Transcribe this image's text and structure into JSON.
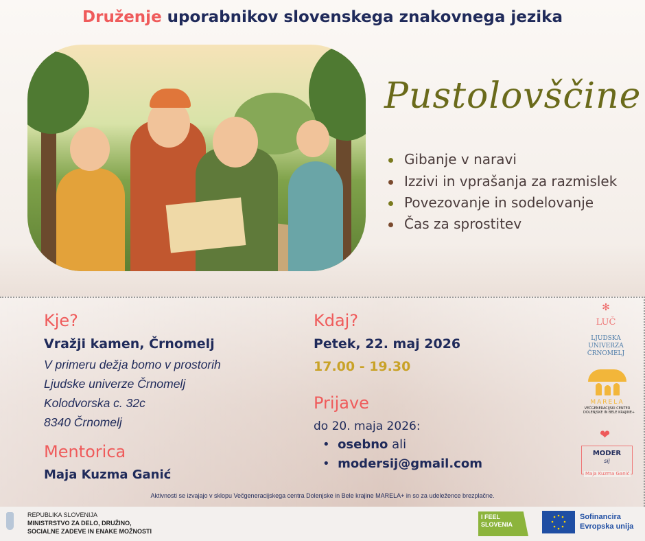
{
  "header": {
    "title_highlight": "Druženje",
    "title_rest": " uporabnikov slovenskega znakovnega jezika"
  },
  "hero": {
    "script_title": "Pustolovščine",
    "bullets": [
      {
        "text": "Gibanje v naravi",
        "color": "#7a7a1e"
      },
      {
        "text": "Izzivi in vprašanja za razmislek",
        "color": "#7a4a2e"
      },
      {
        "text": "Povezovanje in sodelovanje",
        "color": "#7a7a1e"
      },
      {
        "text": "Čas za sprostitev",
        "color": "#7a4a2e"
      }
    ]
  },
  "where": {
    "heading": "Kje?",
    "place": "Vražji kamen, Črnomelj",
    "lines": [
      "V primeru dežja bomo v prostorih",
      "Ljudske univerze Črnomelj",
      "Kolodvorska c. 32c",
      "8340 Črnomelj"
    ]
  },
  "mentor": {
    "heading": "Mentorica",
    "name": "Maja Kuzma Ganić"
  },
  "when": {
    "heading": "Kdaj?",
    "date": "Petek, 22. maj 2026",
    "time": "17.00 - 19.30"
  },
  "signup": {
    "heading": "Prijave",
    "deadline": "do 20. maja 2026:",
    "items": [
      {
        "bold": "osebno",
        "rest": " ali"
      },
      {
        "bold": "modersij@gmail.com",
        "rest": ""
      }
    ]
  },
  "logos": {
    "luc": "LUČ",
    "lu": [
      "LJUDSKA",
      "UNIVERZA",
      "ČRNOMELJ"
    ],
    "marela": "MARELA",
    "marela_sub": [
      "VEČGENERACIJSKI CENTER",
      "DOLENJSKE IN BELE KRAJINE+"
    ],
    "moder": "MODER",
    "moder_sig": "sij",
    "moder_name": "Maja Kuzma Ganić"
  },
  "note": "Aktivnosti se izvajajo v sklopu Večgeneracijskega centra Dolenjske in Bele krajine MARELA+ in so za udeležence brezplačne.",
  "footer": {
    "ministry": [
      "REPUBLIKA SLOVENIJA",
      "MINISTRSTVO ZA DELO, DRUŽINO,",
      "SOCIALNE ZADEVE IN ENAKE MOŽNOSTI"
    ],
    "ifeel": [
      "I FEEL",
      "SLOVENIA"
    ],
    "eu": [
      "Sofinancira",
      "Evropska unija"
    ]
  },
  "colors": {
    "accent": "#ef5b5b",
    "navy": "#1f2a5a",
    "gold": "#c9a227"
  }
}
